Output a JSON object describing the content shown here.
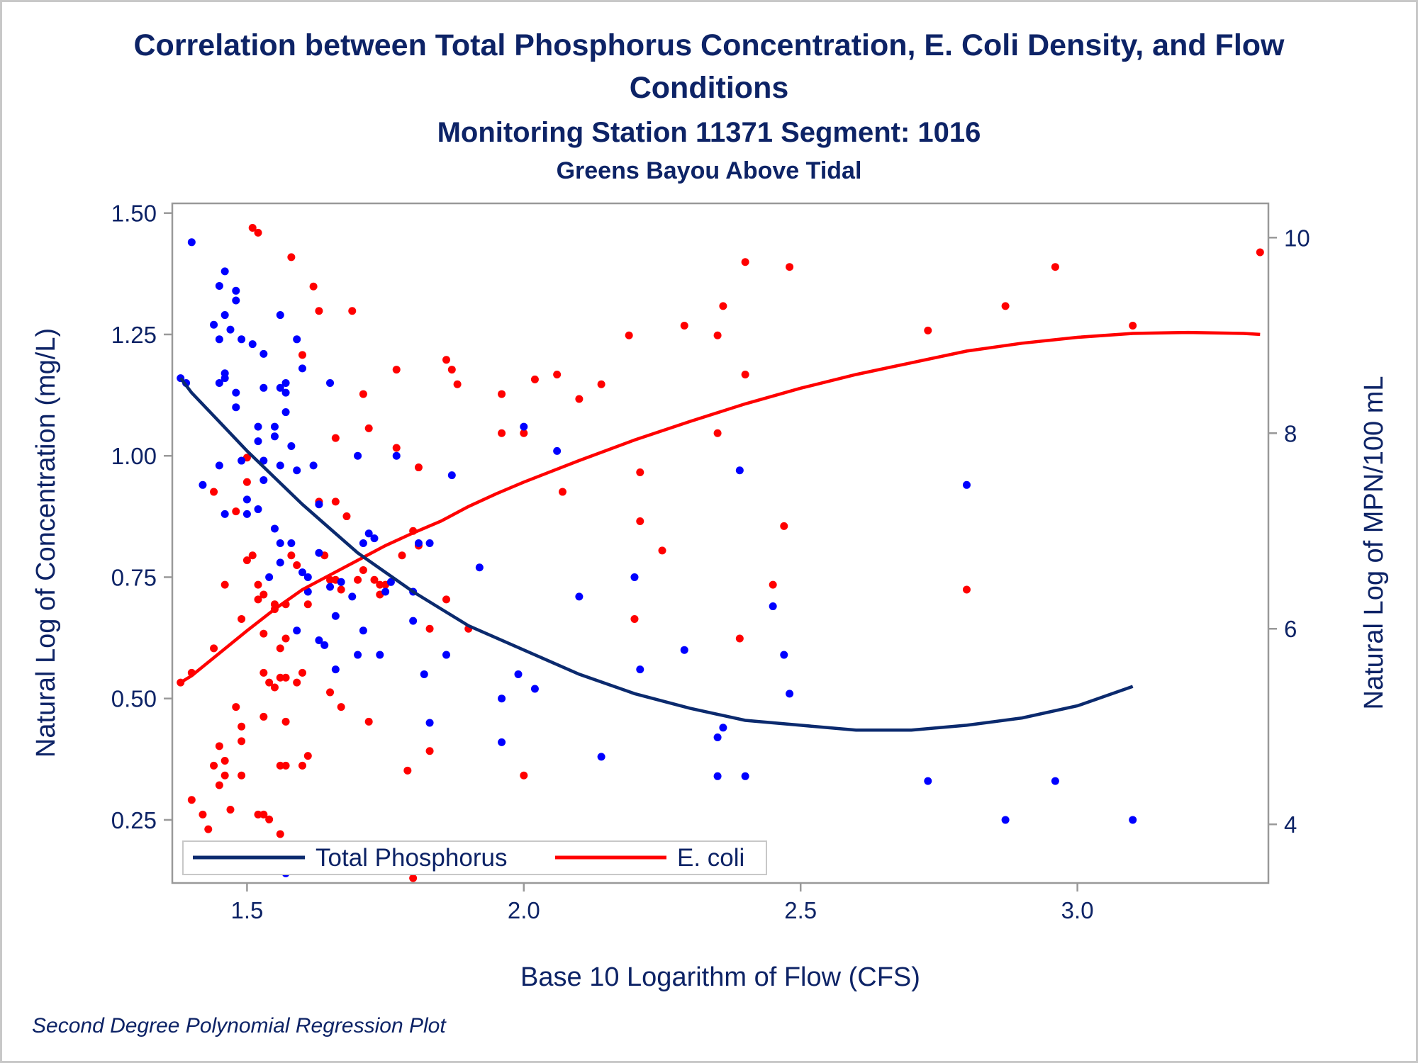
{
  "chart_data": {
    "type": "scatter",
    "title": "Correlation between Total Phosphorus Concentration, E. Coli Density, and Flow",
    "title_line2": "Conditions",
    "subtitle": "Monitoring Station 11371 Segment: 1016",
    "subtitle2": "Greens Bayou Above Tidal",
    "footnote": "Second Degree Polynomial Regression Plot",
    "xlabel": "Base 10 Logarithm of Flow (CFS)",
    "ylabel_left": "Natural Log of Concentration (mg/L)",
    "ylabel_right": "Natural Log of MPN/100 mL",
    "xlim": [
      1.365,
      3.345
    ],
    "ylim_left": [
      0.12,
      1.52
    ],
    "ylim_right": [
      3.4,
      10.35
    ],
    "x_ticks": [
      "1.5",
      "2.0",
      "2.5",
      "3.0"
    ],
    "y_left_ticks": [
      "0.25",
      "0.50",
      "0.75",
      "1.00",
      "1.25",
      "1.50"
    ],
    "y_right_ticks": [
      "4",
      "6",
      "8",
      "10"
    ],
    "grid": false,
    "legend_position": "bottom-left",
    "colors": {
      "frame": "#999999",
      "text": "#0d2366",
      "phosphorus": "#0000ff",
      "phosphorus_line": "#0b2a6e",
      "ecoli": "#ff0000"
    },
    "series": [
      {
        "name": "Total Phosphorus",
        "axis": "left",
        "points": [
          [
            1.38,
            1.16
          ],
          [
            1.39,
            1.15
          ],
          [
            1.4,
            1.44
          ],
          [
            1.42,
            0.94
          ],
          [
            1.44,
            1.27
          ],
          [
            1.45,
            1.35
          ],
          [
            1.45,
            1.24
          ],
          [
            1.45,
            1.15
          ],
          [
            1.45,
            0.98
          ],
          [
            1.46,
            1.38
          ],
          [
            1.46,
            1.29
          ],
          [
            1.46,
            1.17
          ],
          [
            1.46,
            1.16
          ],
          [
            1.46,
            0.88
          ],
          [
            1.47,
            1.26
          ],
          [
            1.48,
            1.34
          ],
          [
            1.48,
            1.32
          ],
          [
            1.48,
            1.13
          ],
          [
            1.48,
            1.1
          ],
          [
            1.49,
            1.24
          ],
          [
            1.49,
            0.99
          ],
          [
            1.5,
            0.91
          ],
          [
            1.5,
            0.88
          ],
          [
            1.51,
            1.23
          ],
          [
            1.52,
            1.06
          ],
          [
            1.52,
            1.03
          ],
          [
            1.52,
            0.89
          ],
          [
            1.53,
            1.21
          ],
          [
            1.53,
            1.14
          ],
          [
            1.53,
            0.99
          ],
          [
            1.53,
            0.95
          ],
          [
            1.54,
            0.75
          ],
          [
            1.55,
            1.04
          ],
          [
            1.55,
            1.06
          ],
          [
            1.55,
            0.85
          ],
          [
            1.56,
            1.29
          ],
          [
            1.56,
            1.14
          ],
          [
            1.56,
            0.98
          ],
          [
            1.56,
            0.82
          ],
          [
            1.56,
            0.78
          ],
          [
            1.57,
            1.15
          ],
          [
            1.57,
            1.13
          ],
          [
            1.57,
            1.09
          ],
          [
            1.57,
            0.14
          ],
          [
            1.58,
            1.02
          ],
          [
            1.58,
            0.82
          ],
          [
            1.59,
            1.24
          ],
          [
            1.59,
            0.97
          ],
          [
            1.59,
            0.64
          ],
          [
            1.6,
            1.18
          ],
          [
            1.6,
            0.76
          ],
          [
            1.61,
            0.75
          ],
          [
            1.61,
            0.72
          ],
          [
            1.62,
            0.98
          ],
          [
            1.63,
            0.9
          ],
          [
            1.63,
            0.8
          ],
          [
            1.63,
            0.62
          ],
          [
            1.64,
            0.61
          ],
          [
            1.65,
            1.15
          ],
          [
            1.65,
            0.73
          ],
          [
            1.66,
            0.67
          ],
          [
            1.66,
            0.56
          ],
          [
            1.67,
            0.74
          ],
          [
            1.69,
            0.71
          ],
          [
            1.7,
            1.0
          ],
          [
            1.7,
            0.59
          ],
          [
            1.71,
            0.82
          ],
          [
            1.71,
            0.64
          ],
          [
            1.72,
            0.84
          ],
          [
            1.73,
            0.83
          ],
          [
            1.74,
            0.59
          ],
          [
            1.75,
            0.72
          ],
          [
            1.76,
            0.74
          ],
          [
            1.77,
            1.0
          ],
          [
            1.8,
            0.72
          ],
          [
            1.8,
            0.66
          ],
          [
            1.81,
            0.82
          ],
          [
            1.82,
            0.55
          ],
          [
            1.83,
            0.82
          ],
          [
            1.83,
            0.45
          ],
          [
            1.86,
            0.59
          ],
          [
            1.87,
            0.96
          ],
          [
            1.92,
            0.77
          ],
          [
            1.96,
            0.41
          ],
          [
            1.96,
            0.5
          ],
          [
            1.99,
            0.55
          ],
          [
            2.0,
            1.06
          ],
          [
            2.02,
            0.52
          ],
          [
            2.06,
            1.01
          ],
          [
            2.1,
            0.71
          ],
          [
            2.14,
            0.38
          ],
          [
            2.2,
            0.75
          ],
          [
            2.21,
            0.56
          ],
          [
            2.29,
            0.6
          ],
          [
            2.35,
            0.42
          ],
          [
            2.35,
            0.34
          ],
          [
            2.36,
            0.44
          ],
          [
            2.39,
            0.97
          ],
          [
            2.4,
            0.34
          ],
          [
            2.45,
            0.69
          ],
          [
            2.47,
            0.59
          ],
          [
            2.48,
            0.51
          ],
          [
            2.73,
            0.33
          ],
          [
            2.8,
            0.94
          ],
          [
            2.87,
            0.25
          ],
          [
            2.96,
            0.33
          ],
          [
            3.1,
            0.25
          ]
        ],
        "fit": [
          [
            1.38,
            1.16
          ],
          [
            1.4,
            1.13
          ],
          [
            1.45,
            1.07
          ],
          [
            1.5,
            1.01
          ],
          [
            1.55,
            0.955
          ],
          [
            1.6,
            0.9
          ],
          [
            1.65,
            0.85
          ],
          [
            1.7,
            0.8
          ],
          [
            1.75,
            0.76
          ],
          [
            1.8,
            0.72
          ],
          [
            1.85,
            0.685
          ],
          [
            1.9,
            0.65
          ],
          [
            1.95,
            0.625
          ],
          [
            2.0,
            0.6
          ],
          [
            2.1,
            0.55
          ],
          [
            2.2,
            0.51
          ],
          [
            2.3,
            0.48
          ],
          [
            2.4,
            0.455
          ],
          [
            2.5,
            0.445
          ],
          [
            2.6,
            0.435
          ],
          [
            2.7,
            0.435
          ],
          [
            2.8,
            0.445
          ],
          [
            2.9,
            0.46
          ],
          [
            3.0,
            0.485
          ],
          [
            3.1,
            0.525
          ]
        ]
      },
      {
        "name": "E. coli",
        "axis": "right",
        "points": [
          [
            1.38,
            5.45
          ],
          [
            1.4,
            5.55
          ],
          [
            1.4,
            4.25
          ],
          [
            1.42,
            4.1
          ],
          [
            1.43,
            3.95
          ],
          [
            1.44,
            5.8
          ],
          [
            1.44,
            7.4
          ],
          [
            1.44,
            4.6
          ],
          [
            1.45,
            4.4
          ],
          [
            1.45,
            4.8
          ],
          [
            1.46,
            6.45
          ],
          [
            1.46,
            4.65
          ],
          [
            1.46,
            4.5
          ],
          [
            1.47,
            4.15
          ],
          [
            1.48,
            5.2
          ],
          [
            1.48,
            7.2
          ],
          [
            1.49,
            5.0
          ],
          [
            1.49,
            6.1
          ],
          [
            1.49,
            4.85
          ],
          [
            1.49,
            4.5
          ],
          [
            1.5,
            6.7
          ],
          [
            1.5,
            7.5
          ],
          [
            1.5,
            7.75
          ],
          [
            1.51,
            10.1
          ],
          [
            1.51,
            6.75
          ],
          [
            1.52,
            10.05
          ],
          [
            1.52,
            6.45
          ],
          [
            1.52,
            6.3
          ],
          [
            1.52,
            4.1
          ],
          [
            1.53,
            6.35
          ],
          [
            1.53,
            5.95
          ],
          [
            1.53,
            5.55
          ],
          [
            1.53,
            5.1
          ],
          [
            1.53,
            4.1
          ],
          [
            1.54,
            4.05
          ],
          [
            1.54,
            5.45
          ],
          [
            1.55,
            3.65
          ],
          [
            1.55,
            6.2
          ],
          [
            1.55,
            6.25
          ],
          [
            1.55,
            5.4
          ],
          [
            1.56,
            5.5
          ],
          [
            1.56,
            3.9
          ],
          [
            1.56,
            4.6
          ],
          [
            1.56,
            5.8
          ],
          [
            1.57,
            6.25
          ],
          [
            1.57,
            5.9
          ],
          [
            1.57,
            5.5
          ],
          [
            1.57,
            5.05
          ],
          [
            1.57,
            4.6
          ],
          [
            1.58,
            9.8
          ],
          [
            1.58,
            6.75
          ],
          [
            1.59,
            6.65
          ],
          [
            1.59,
            5.45
          ],
          [
            1.6,
            5.55
          ],
          [
            1.6,
            4.6
          ],
          [
            1.6,
            8.8
          ],
          [
            1.61,
            6.25
          ],
          [
            1.61,
            4.7
          ],
          [
            1.62,
            9.5
          ],
          [
            1.63,
            7.3
          ],
          [
            1.63,
            9.25
          ],
          [
            1.64,
            6.75
          ],
          [
            1.65,
            6.5
          ],
          [
            1.65,
            5.35
          ],
          [
            1.66,
            7.95
          ],
          [
            1.66,
            6.5
          ],
          [
            1.66,
            7.3
          ],
          [
            1.67,
            6.4
          ],
          [
            1.67,
            5.2
          ],
          [
            1.68,
            7.15
          ],
          [
            1.69,
            9.25
          ],
          [
            1.7,
            6.5
          ],
          [
            1.71,
            8.4
          ],
          [
            1.71,
            6.6
          ],
          [
            1.72,
            8.05
          ],
          [
            1.72,
            5.05
          ],
          [
            1.73,
            6.5
          ],
          [
            1.74,
            6.45
          ],
          [
            1.74,
            6.35
          ],
          [
            1.75,
            6.45
          ],
          [
            1.77,
            8.65
          ],
          [
            1.77,
            7.85
          ],
          [
            1.78,
            6.75
          ],
          [
            1.79,
            4.55
          ],
          [
            1.8,
            7.0
          ],
          [
            1.8,
            3.45
          ],
          [
            1.81,
            7.65
          ],
          [
            1.81,
            6.85
          ],
          [
            1.83,
            4.75
          ],
          [
            1.83,
            6.0
          ],
          [
            1.86,
            8.75
          ],
          [
            1.86,
            6.3
          ],
          [
            1.87,
            8.65
          ],
          [
            1.88,
            8.5
          ],
          [
            1.9,
            6.0
          ],
          [
            1.96,
            8.4
          ],
          [
            1.96,
            8.0
          ],
          [
            2.0,
            8.0
          ],
          [
            2.0,
            4.5
          ],
          [
            2.02,
            8.55
          ],
          [
            2.06,
            8.6
          ],
          [
            2.07,
            7.4
          ],
          [
            2.1,
            8.35
          ],
          [
            2.14,
            8.5
          ],
          [
            2.19,
            9.0
          ],
          [
            2.2,
            6.1
          ],
          [
            2.21,
            7.6
          ],
          [
            2.21,
            7.1
          ],
          [
            2.25,
            6.8
          ],
          [
            2.29,
            9.1
          ],
          [
            2.35,
            9.0
          ],
          [
            2.35,
            8.0
          ],
          [
            2.36,
            9.3
          ],
          [
            2.39,
            5.9
          ],
          [
            2.4,
            8.6
          ],
          [
            2.4,
            9.75
          ],
          [
            2.45,
            6.45
          ],
          [
            2.47,
            7.05
          ],
          [
            2.48,
            9.7
          ],
          [
            2.73,
            9.05
          ],
          [
            2.8,
            6.4
          ],
          [
            2.87,
            9.3
          ],
          [
            2.96,
            9.7
          ],
          [
            3.1,
            9.1
          ],
          [
            3.33,
            9.85
          ]
        ],
        "fit": [
          [
            1.38,
            5.45
          ],
          [
            1.4,
            5.52
          ],
          [
            1.45,
            5.75
          ],
          [
            1.5,
            5.98
          ],
          [
            1.55,
            6.2
          ],
          [
            1.6,
            6.4
          ],
          [
            1.65,
            6.55
          ],
          [
            1.7,
            6.7
          ],
          [
            1.75,
            6.85
          ],
          [
            1.8,
            6.98
          ],
          [
            1.85,
            7.1
          ],
          [
            1.9,
            7.25
          ],
          [
            1.95,
            7.38
          ],
          [
            2.0,
            7.5
          ],
          [
            2.1,
            7.72
          ],
          [
            2.2,
            7.93
          ],
          [
            2.3,
            8.12
          ],
          [
            2.4,
            8.3
          ],
          [
            2.5,
            8.46
          ],
          [
            2.6,
            8.6
          ],
          [
            2.7,
            8.72
          ],
          [
            2.8,
            8.84
          ],
          [
            2.9,
            8.92
          ],
          [
            3.0,
            8.98
          ],
          [
            3.1,
            9.02
          ],
          [
            3.2,
            9.03
          ],
          [
            3.3,
            9.02
          ],
          [
            3.33,
            9.01
          ]
        ]
      }
    ]
  }
}
